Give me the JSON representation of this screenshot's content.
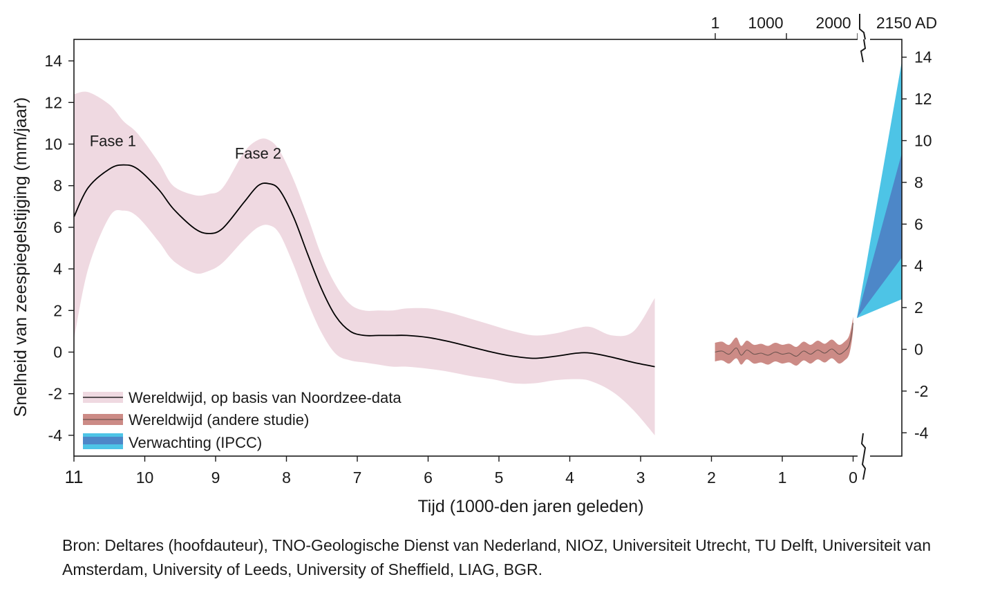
{
  "colors": {
    "global_band": "#efd9e1",
    "global_line": "#000000",
    "other_band": "#cc8b86",
    "other_line": "#6e5550",
    "ipcc_light": "#4dc4e6",
    "ipcc_dark": "#4d87c8"
  },
  "chart_data": {
    "type": "line",
    "title": "",
    "ylabel": "Snelheid van zeespiegelstijging (mm/jaar)",
    "xlabel": "Tijd (1000-den jaren geleden)",
    "ylim": [
      -5,
      15
    ],
    "y_ticks": [
      -4,
      -2,
      0,
      2,
      4,
      6,
      8,
      10,
      12,
      14
    ],
    "y_tick_labels": [
      "-4",
      "-2",
      "0",
      "2",
      "4",
      "6",
      "8",
      "10",
      "12",
      "14"
    ],
    "x_ticks": [
      11,
      10,
      9,
      8,
      7,
      6,
      5,
      4,
      3,
      2,
      1,
      0
    ],
    "x_tick_labels": [
      "11",
      "10",
      "9",
      "8",
      "7",
      "6",
      "5",
      "4",
      "3",
      "2",
      "1",
      "0"
    ],
    "top_axis": {
      "labels": [
        "1",
        "1000",
        "2000",
        "2150 AD"
      ]
    },
    "annotations": [
      {
        "text": "Fase 1",
        "x": 10.45,
        "y": 9.9
      },
      {
        "text": "Fase 2",
        "x": 8.4,
        "y": 9.3
      }
    ],
    "series": [
      {
        "name": "Wereldwijd, op basis van Noordzee-data",
        "x": [
          11,
          10.8,
          10.5,
          10.3,
          10.1,
          9.8,
          9.6,
          9.3,
          9.1,
          8.9,
          8.6,
          8.4,
          8.25,
          8.1,
          7.9,
          7.7,
          7.5,
          7.3,
          7.1,
          6.9,
          6.7,
          6.5,
          6.3,
          6.0,
          5.7,
          5.4,
          5.1,
          4.8,
          4.5,
          4.2,
          3.9,
          3.7,
          3.4,
          3.1,
          2.8
        ],
        "values": [
          6.5,
          7.9,
          8.8,
          9.0,
          8.8,
          7.8,
          6.9,
          5.95,
          5.7,
          5.95,
          7.2,
          8.0,
          8.1,
          7.8,
          6.5,
          4.7,
          3.0,
          1.7,
          1.0,
          0.8,
          0.8,
          0.8,
          0.8,
          0.7,
          0.5,
          0.25,
          0.0,
          -0.2,
          -0.3,
          -0.2,
          -0.05,
          -0.05,
          -0.25,
          -0.5,
          -0.7
        ],
        "lower": [
          0.6,
          4.0,
          6.5,
          6.8,
          6.5,
          5.3,
          4.4,
          3.8,
          3.9,
          4.3,
          5.4,
          6.0,
          6.1,
          5.7,
          4.2,
          2.4,
          0.9,
          -0.1,
          -0.4,
          -0.5,
          -0.6,
          -0.7,
          -0.7,
          -0.8,
          -0.95,
          -1.15,
          -1.3,
          -1.5,
          -1.5,
          -1.35,
          -1.3,
          -1.4,
          -1.9,
          -2.8,
          -4.0
        ],
        "upper": [
          12.4,
          12.5,
          11.9,
          11.1,
          10.5,
          9.1,
          8.0,
          7.55,
          7.6,
          7.9,
          9.6,
          10.2,
          10.2,
          9.7,
          8.3,
          6.5,
          4.6,
          3.2,
          2.3,
          2.0,
          2.0,
          2.0,
          2.1,
          2.1,
          1.9,
          1.6,
          1.3,
          1.0,
          0.8,
          0.9,
          1.15,
          1.2,
          0.8,
          1.0,
          2.6
        ]
      },
      {
        "name": "Wereldwijd (andere studie)",
        "x": [
          1.95,
          1.85,
          1.75,
          1.65,
          1.58,
          1.5,
          1.4,
          1.3,
          1.2,
          1.1,
          1.0,
          0.9,
          0.8,
          0.7,
          0.6,
          0.5,
          0.4,
          0.3,
          0.2,
          0.12,
          0.06,
          0.02,
          0.0
        ],
        "values": [
          0.0,
          0.05,
          -0.1,
          0.2,
          -0.15,
          0.1,
          -0.1,
          -0.05,
          -0.15,
          0.0,
          -0.1,
          -0.05,
          -0.2,
          0.05,
          -0.1,
          0.1,
          -0.05,
          0.15,
          -0.1,
          0.05,
          0.3,
          0.9,
          1.4
        ],
        "lower": [
          -0.45,
          -0.4,
          -0.55,
          -0.3,
          -0.6,
          -0.35,
          -0.55,
          -0.5,
          -0.6,
          -0.45,
          -0.55,
          -0.5,
          -0.65,
          -0.4,
          -0.55,
          -0.35,
          -0.5,
          -0.3,
          -0.55,
          -0.4,
          -0.15,
          0.5,
          1.1
        ],
        "upper": [
          0.45,
          0.5,
          0.35,
          0.7,
          0.3,
          0.55,
          0.35,
          0.4,
          0.3,
          0.45,
          0.35,
          0.4,
          0.25,
          0.5,
          0.35,
          0.55,
          0.4,
          0.6,
          0.35,
          0.5,
          0.75,
          1.3,
          1.7
        ]
      },
      {
        "name": "Verwachting (IPCC)",
        "start_value": 1.5,
        "end_outer_lower": 2.4,
        "end_outer_upper": 13.8,
        "end_inner_lower": 4.4,
        "end_inner_upper": 9.4
      }
    ],
    "legend": {
      "position": "bottom-left",
      "entries": [
        "Wereldwijd, op basis van Noordzee-data",
        "Wereldwijd (andere studie)",
        "Verwachting (IPCC)"
      ]
    }
  },
  "source": "Bron: Deltares (hoofdauteur), TNO-Geologische Dienst van Nederland, NIOZ, Universiteit Utrecht, TU Delft, Universiteit van Amsterdam, University of Leeds, University of Sheffield, LIAG, BGR."
}
